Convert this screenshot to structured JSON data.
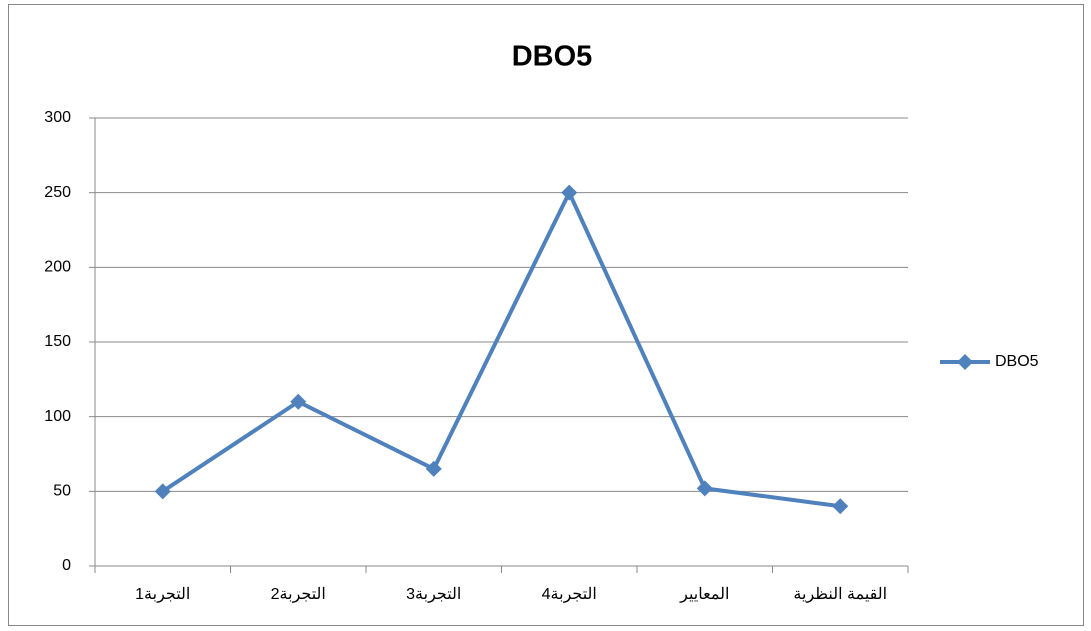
{
  "chart_data": {
    "type": "line",
    "title": "DBO5",
    "categories": [
      "التجربة1",
      "التجربة2",
      "التجربة3",
      "التجربة4",
      "المعايير",
      "القيمة النظرية"
    ],
    "series": [
      {
        "name": "DBO5",
        "color": "#4f81bd",
        "values": [
          50,
          110,
          65,
          250,
          52,
          40
        ]
      }
    ],
    "ylim": [
      0,
      300
    ],
    "yticks": [
      0,
      50,
      100,
      150,
      200,
      250,
      300
    ],
    "grid": true,
    "legend": "right"
  }
}
